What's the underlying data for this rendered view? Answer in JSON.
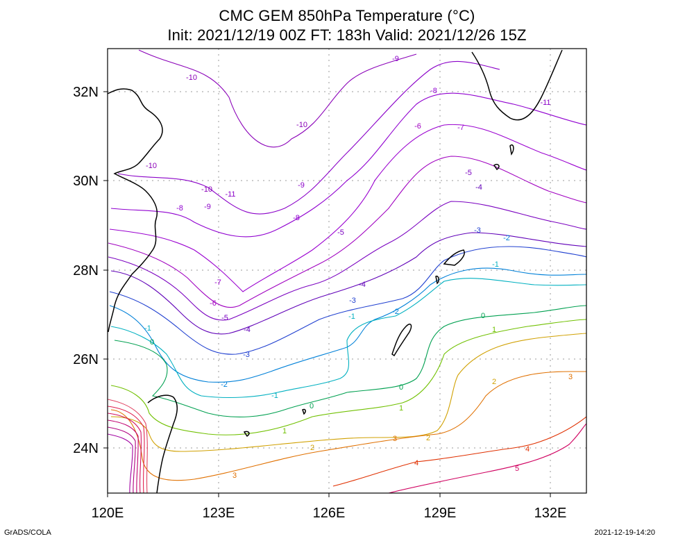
{
  "title": {
    "line1": "CMC GEM 850hPa Temperature (°C)",
    "line2": "Init: 2021/12/19 00Z  FT: 183h  Valid: 2021/12/26 15Z"
  },
  "map": {
    "lon_range": [
      120,
      133
    ],
    "lat_range": [
      23,
      33
    ],
    "lon_ticks": [
      "120E",
      "123E",
      "126E",
      "129E",
      "132E"
    ],
    "lat_ticks": [
      "32N",
      "30N",
      "28N",
      "26N",
      "24N"
    ]
  },
  "contour_labels": [
    "-10",
    "-10",
    "-10",
    "-10",
    "-9",
    "-9",
    "-9",
    "-8",
    "-8",
    "-8",
    "-7",
    "-7",
    "-6",
    "-6",
    "-5",
    "-5",
    "-5",
    "-4",
    "-4",
    "-4",
    "-3",
    "-3",
    "-3",
    "-2",
    "-2",
    "-2",
    "-1",
    "-1",
    "-1",
    "-1",
    "0",
    "0",
    "0",
    "0",
    "1",
    "1",
    "1",
    "2",
    "2",
    "2",
    "3",
    "3",
    "3",
    "4",
    "4",
    "5",
    "-11",
    "-11"
  ],
  "footer": {
    "left": "GrADS/COLA",
    "right": "2021-12-19-14:20"
  }
}
